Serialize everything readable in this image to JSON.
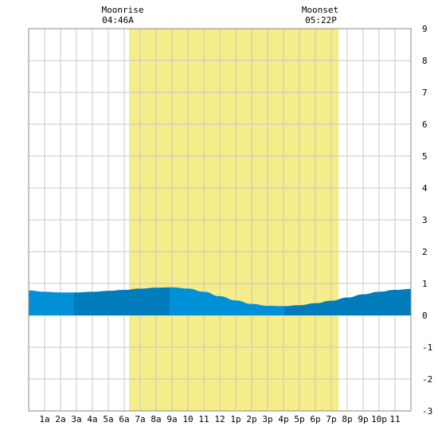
{
  "moon": {
    "rise_label": "Moonrise",
    "rise_time": "04:46A",
    "set_label": "Moonset",
    "set_time": "05:22P"
  },
  "chart_data": {
    "type": "area",
    "x_unit": "hour of day",
    "x_tick_labels": [
      "1a",
      "2a",
      "3a",
      "4a",
      "5a",
      "6a",
      "7a",
      "8a",
      "9a",
      "10",
      "11",
      "12",
      "1p",
      "2p",
      "3p",
      "4p",
      "5p",
      "6p",
      "7p",
      "8p",
      "9p",
      "10p",
      "11"
    ],
    "xlim": [
      0,
      24
    ],
    "ylim": [
      -3,
      9
    ],
    "y_ticks": [
      -3,
      -2,
      -1,
      0,
      1,
      2,
      3,
      4,
      5,
      6,
      7,
      8,
      9
    ],
    "daylight_hours": [
      6.3,
      19.45
    ],
    "series": [
      {
        "x": [
          0,
          1,
          2,
          3,
          4,
          5,
          6,
          7,
          8,
          9,
          10,
          11,
          12,
          13,
          14,
          15,
          16,
          17,
          18,
          19,
          20,
          21,
          22,
          23,
          24
        ],
        "y": [
          0.78,
          0.74,
          0.72,
          0.72,
          0.74,
          0.77,
          0.8,
          0.84,
          0.87,
          0.88,
          0.84,
          0.74,
          0.6,
          0.47,
          0.36,
          0.3,
          0.29,
          0.32,
          0.38,
          0.46,
          0.56,
          0.66,
          0.74,
          0.8,
          0.83
        ]
      }
    ],
    "colors": {
      "daylight": "#f5ec8a",
      "tide_light": "#0090d8",
      "tide_dark": "#007cbb",
      "grid": "#c8c8c8",
      "border": "#888888"
    }
  }
}
